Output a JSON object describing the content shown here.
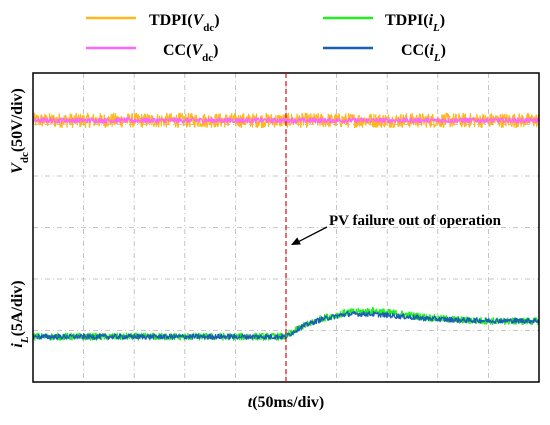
{
  "chart_data": {
    "type": "line",
    "title": "",
    "xlabel_prefix": "t",
    "xlabel_suffix": "(50ms/div)",
    "ylabel_top": {
      "main": "V",
      "sub": "dc",
      "rest": "(50V/div)"
    },
    "ylabel_bottom": {
      "main": "i",
      "sub": "L",
      "rest": "(5A/div)"
    },
    "x_divisions": 10,
    "y_divisions": 6,
    "xlim": [
      0,
      10
    ],
    "ylim": [
      0,
      6
    ],
    "grid": true,
    "legend_position": "top",
    "annotation": {
      "text": "PV failure out of operation",
      "event_x": 5
    },
    "series": [
      {
        "name": "TDPI(Vdc)",
        "legend": {
          "prefix": "TDPI(",
          "main": "V",
          "sub": "dc",
          "suffix": ")"
        },
        "color": "#FFB81C",
        "x": [
          0,
          10
        ],
        "y": [
          5.08,
          5.08
        ],
        "noise": 0.14
      },
      {
        "name": "CC(Vdc)",
        "legend": {
          "prefix": "CC(",
          "main": "V",
          "sub": "dc",
          "suffix": ")"
        },
        "color": "#FF66FF",
        "x": [
          0,
          10
        ],
        "y": [
          5.08,
          5.08
        ],
        "noise": 0.05
      },
      {
        "name": "TDPI(iL)",
        "legend": {
          "prefix": "TDPI(",
          "main": "i",
          "sub": "L",
          "suffix": ")"
        },
        "color": "#22EE22",
        "x": [
          0,
          5.0,
          5.3,
          5.7,
          6.2,
          6.7,
          7.2,
          7.8,
          8.5,
          9.2,
          10
        ],
        "y": [
          0.88,
          0.88,
          1.07,
          1.23,
          1.35,
          1.38,
          1.33,
          1.25,
          1.2,
          1.18,
          1.18
        ],
        "noise": 0.07
      },
      {
        "name": "CC(iL)",
        "legend": {
          "prefix": "CC(",
          "main": "i",
          "sub": "L",
          "suffix": ")"
        },
        "color": "#1A5FB4",
        "x": [
          0,
          5.0,
          5.3,
          5.7,
          6.2,
          6.7,
          7.2,
          7.8,
          8.5,
          9.2,
          10
        ],
        "y": [
          0.88,
          0.88,
          1.07,
          1.22,
          1.32,
          1.32,
          1.28,
          1.23,
          1.2,
          1.19,
          1.19
        ],
        "noise": 0.05
      }
    ]
  }
}
